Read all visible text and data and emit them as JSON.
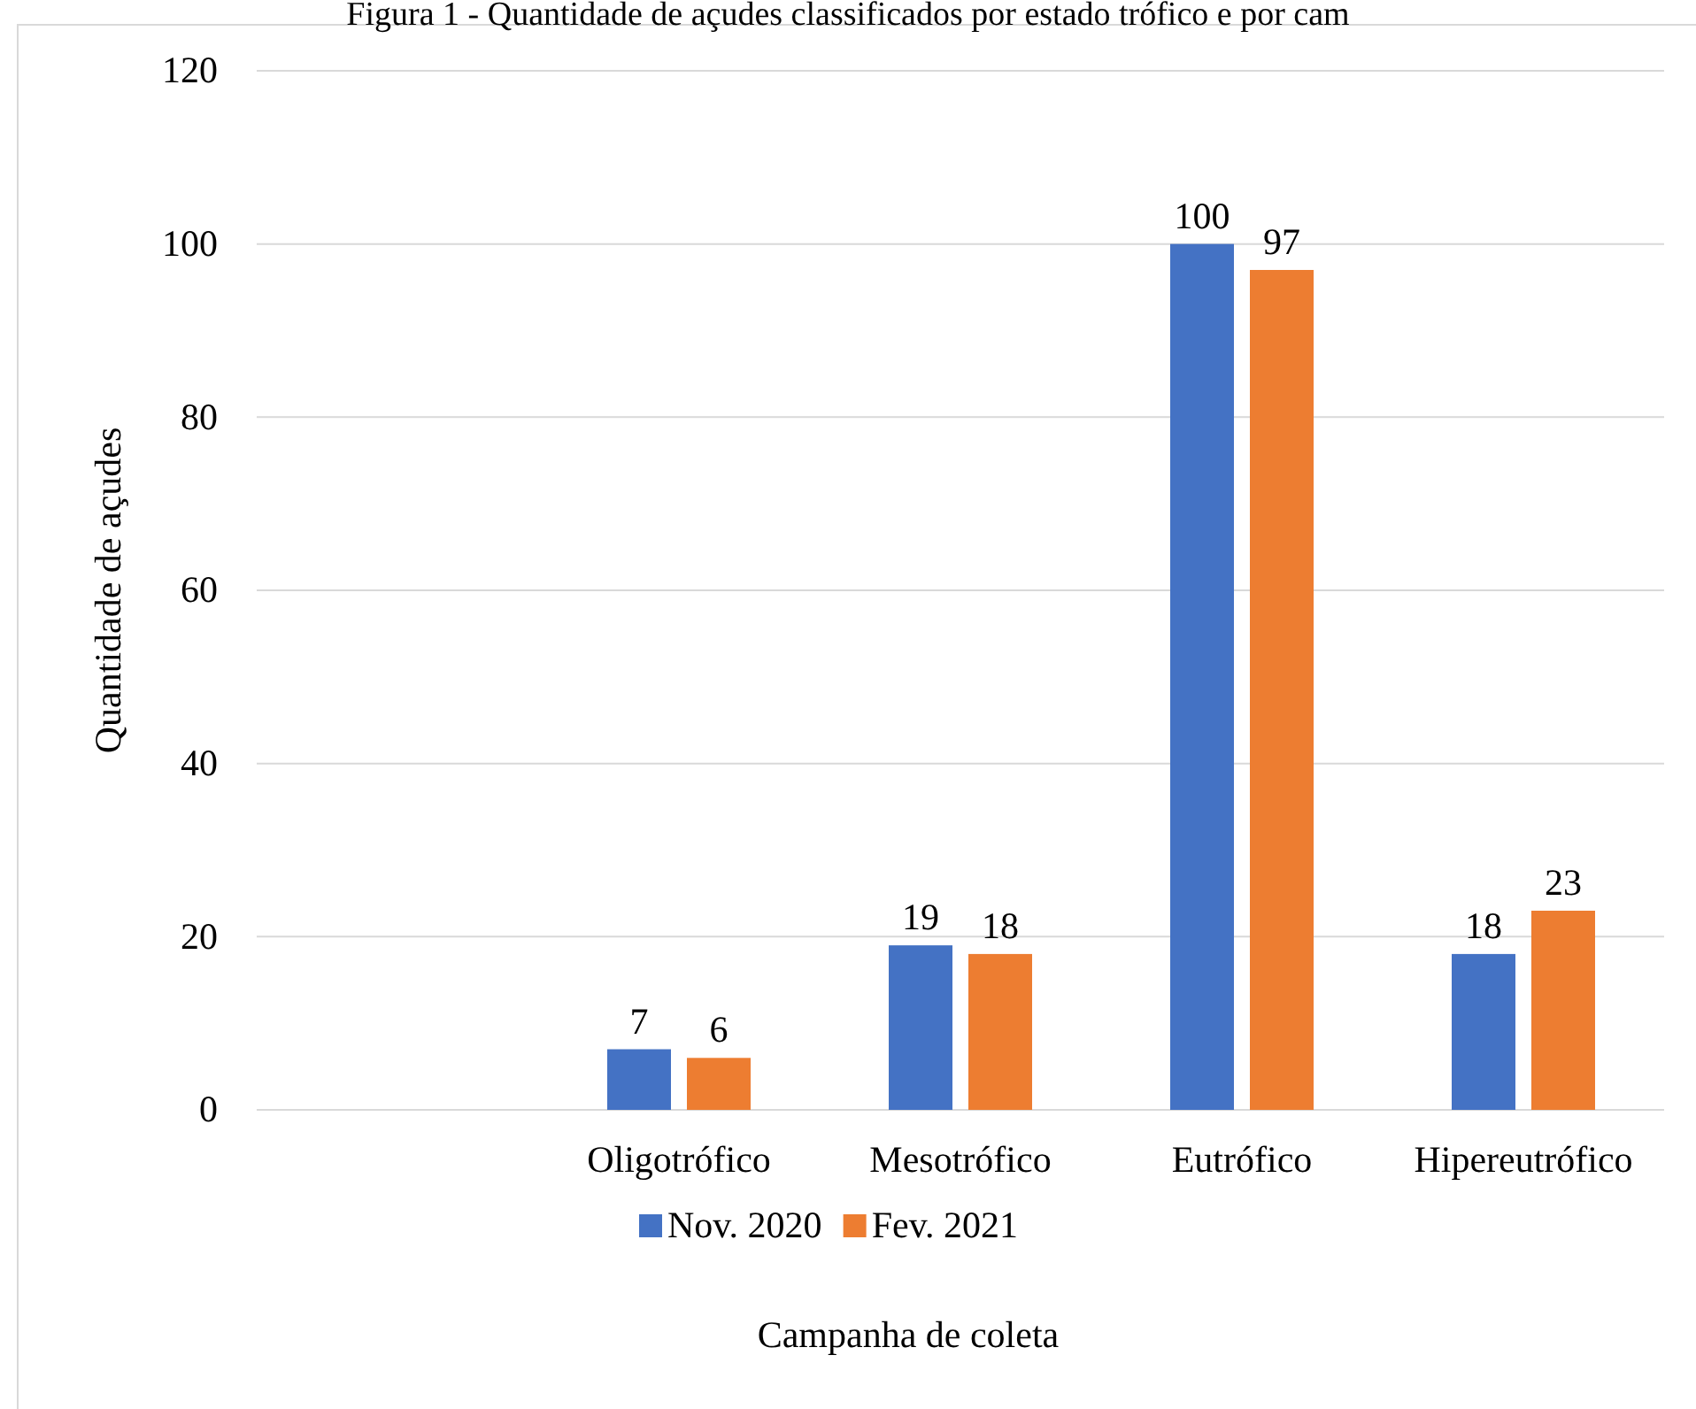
{
  "chart_data": {
    "type": "bar",
    "title": "Figura 1 - Quantidade de açudes classificados por estado trófico e por cam",
    "xlabel": "Campanha de coleta",
    "ylabel": "Quantidade de açudes",
    "categories": [
      null,
      "Oligotrófico",
      "Mesotrófico",
      "Eutrófico",
      "Hipereutrófico"
    ],
    "series": [
      {
        "name": "Nov. 2020",
        "color": "#4472c4",
        "values": [
          null,
          7,
          19,
          100,
          18
        ]
      },
      {
        "name": "Fev. 2021",
        "color": "#ed7d31",
        "values": [
          null,
          6,
          18,
          97,
          23
        ]
      }
    ],
    "ylim": [
      0,
      120
    ],
    "yticks": [
      0,
      20,
      40,
      60,
      80,
      100,
      120
    ],
    "grid": "y",
    "legend": "bottom",
    "data_labels": true
  }
}
